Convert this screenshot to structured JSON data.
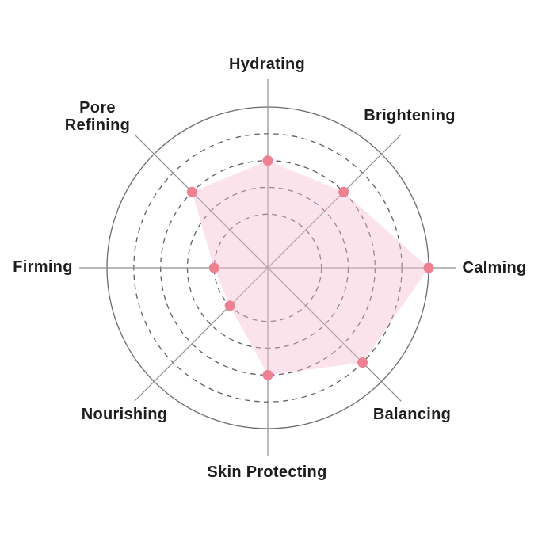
{
  "chart_data": {
    "type": "radar",
    "title": "",
    "categories": [
      "Hydrating",
      "Brightening",
      "Calming",
      "Balancing",
      "Skin Protecting",
      "Nourishing",
      "Firming",
      "Pore Refining"
    ],
    "values": [
      4,
      4,
      6,
      5,
      4,
      2,
      2,
      4
    ],
    "max": 6,
    "grid_levels": [
      2,
      3,
      4,
      5
    ],
    "angles_deg": [
      90,
      45,
      0,
      -45,
      -90,
      -135,
      180,
      135
    ],
    "grid": "dashed-circles",
    "legend_position": "none",
    "style": {
      "fill_color": "#f8bbd0",
      "fill_opacity": 0.42,
      "dot_color": "#ee8092",
      "dot_radius": 6.5,
      "axis_color": "#8f8f8f",
      "ring_color": "#5f5f5f",
      "outer_ring_color": "#6b6b6b",
      "label_color": "#1d1d1d",
      "background": "#ffffff"
    }
  },
  "labels": {
    "hydrating": "Hydrating",
    "brightening": "Brightening",
    "calming": "Calming",
    "balancing": "Balancing",
    "skin_protecting": "Skin Protecting",
    "nourishing": "Nourishing",
    "firming": "Firming",
    "pore_refining": "Pore Refining"
  }
}
